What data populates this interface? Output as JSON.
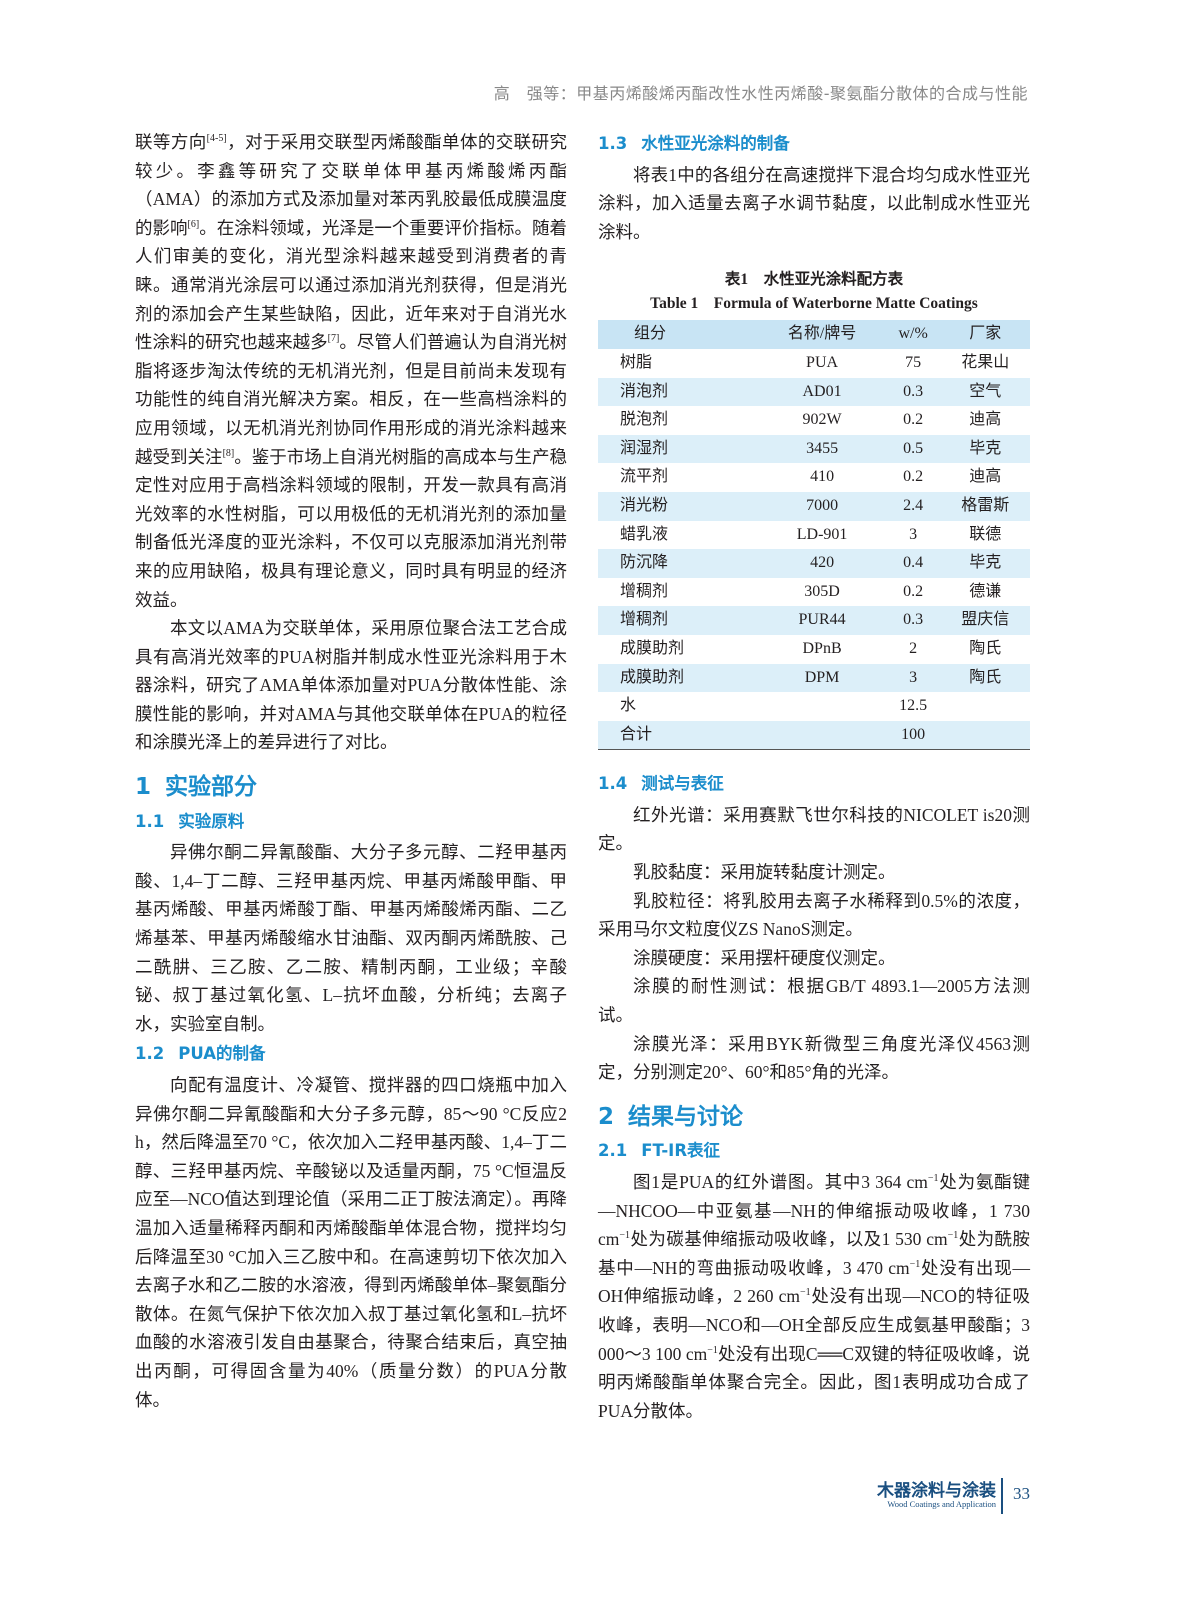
{
  "header": {
    "title": "高　强等：甲基丙烯酸烯丙酯改性水性丙烯酸-聚氨酯分散体的合成与性能"
  },
  "left": [
    {
      "type": "p",
      "indent": false,
      "runs": [
        "联等方向",
        {
          "sup": "[4-5]"
        },
        "，对于采用交联型丙烯酸酯单体的交联研究较少。李鑫等研究了交联单体甲基丙烯酸烯丙酯（AMA）的添加方式及添加量对苯丙乳胶最低成膜温度的影响",
        {
          "sup": "[6]"
        },
        "。在涂料领域，光泽是一个重要评价指标。随着人们审美的变化，消光型涂料越来越受到消费者的青睐。通常消光涂层可以通过添加消光剂获得，但是消光剂的添加会产生某些缺陷，因此，近年来对于自消光水性涂料的研究也越来越多",
        {
          "sup": "[7]"
        },
        "。尽管人们普遍认为自消光树脂将逐步淘汰传统的无机消光剂，但是目前尚未发现有功能性的纯自消光解决方案。相反，在一些高档涂料的应用领域，以无机消光剂协同作用形成的消光涂料越来越受到关注",
        {
          "sup": "[8]"
        },
        "。鉴于市场上自消光树脂的高成本与生产稳定性对应用于高档涂料领域的限制，开发一款具有高消光效率的水性树脂，可以用极低的无机消光剂的添加量制备低光泽度的亚光涂料，不仅可以克服添加消光剂带来的应用缺陷，极具有理论意义，同时具有明显的经济效益。"
      ]
    },
    {
      "type": "p",
      "indent": true,
      "runs": [
        "本文以AMA为交联单体，采用原位聚合法工艺合成具有高消光效率的PUA树脂并制成水性亚光涂料用于木器涂料，研究了AMA单体添加量对PUA分散体性能、涂膜性能的影响，并对AMA与其他交联单体在PUA的粒径和涂膜光泽上的差异进行了对比。"
      ]
    },
    {
      "type": "h1",
      "num": "1",
      "title": "实验部分"
    },
    {
      "type": "h2",
      "num": "1.1",
      "title": "实验原料"
    },
    {
      "type": "p",
      "indent": true,
      "runs": [
        "异佛尔酮二异氰酸酯、大分子多元醇、二羟甲基丙酸、1,4–丁二醇、三羟甲基丙烷、甲基丙烯酸甲酯、甲基丙烯酸、甲基丙烯酸丁酯、甲基丙烯酸烯丙酯、二乙烯基苯、甲基丙烯酸缩水甘油酯、双丙酮丙烯酰胺、己二酰肼、三乙胺、乙二胺、精制丙酮，工业级；辛酸铋、叔丁基过氧化氢、L–抗坏血酸，分析纯；去离子水，实验室自制。"
      ]
    },
    {
      "type": "h2",
      "num": "1.2",
      "title": "PUA的制备"
    },
    {
      "type": "p",
      "indent": true,
      "runs": [
        "向配有温度计、冷凝管、搅拌器的四口烧瓶中加入异佛尔酮二异氰酸酯和大分子多元醇，85～90 °C反应2 h，然后降温至70 °C，依次加入二羟甲基丙酸、1,4–丁二醇、三羟甲基丙烷、辛酸铋以及适量丙酮，75 °C恒温反应至—NCO值达到理论值（采用二正丁胺法滴定）。再降温加入适量稀释丙酮和丙烯酸酯单体混合物，搅拌均匀后降温至30 °C加入三乙胺中和。在高速剪切下依次加入去离子水和乙二胺的水溶液，得到丙烯酸单体–聚氨酯分散体。在氮气保护下依次加入叔丁基过氧化氢和L–抗坏血酸的水溶液引发自由基聚合，待聚合结束后，真空抽出丙酮，可得固含量为40%（质量分数）的PUA分散体。"
      ]
    }
  ],
  "right": [
    {
      "type": "h2",
      "num": "1.3",
      "title": "水性亚光涂料的制备"
    },
    {
      "type": "p",
      "indent": true,
      "runs": [
        "将表1中的各组分在高速搅拌下混合均匀成水性亚光涂料，加入适量去离子水调节黏度，以此制成水性亚光涂料。"
      ]
    },
    {
      "type": "table",
      "caption": "表1　水性亚光涂料配方表",
      "caption_en": "Table 1　Formula of Waterborne Matte Coatings",
      "columns": [
        "组分",
        "名称/牌号",
        "w/%",
        "厂家"
      ],
      "rows": [
        [
          "树脂",
          "PUA",
          "75",
          "花果山"
        ],
        [
          "消泡剂",
          "AD01",
          "0.3",
          "空气"
        ],
        [
          "脱泡剂",
          "902W",
          "0.2",
          "迪高"
        ],
        [
          "润湿剂",
          "3455",
          "0.5",
          "毕克"
        ],
        [
          "流平剂",
          "410",
          "0.2",
          "迪高"
        ],
        [
          "消光粉",
          "7000",
          "2.4",
          "格雷斯"
        ],
        [
          "蜡乳液",
          "LD-901",
          "3",
          "联德"
        ],
        [
          "防沉降",
          "420",
          "0.4",
          "毕克"
        ],
        [
          "增稠剂",
          "305D",
          "0.2",
          "德谦"
        ],
        [
          "增稠剂",
          "PUR44",
          "0.3",
          "盟庆信"
        ],
        [
          "成膜助剂",
          "DPnB",
          "2",
          "陶氏"
        ],
        [
          "成膜助剂",
          "DPM",
          "3",
          "陶氏"
        ],
        [
          "水",
          null,
          "12.5",
          null
        ],
        [
          "合计",
          null,
          "100",
          null
        ]
      ]
    },
    {
      "type": "h2",
      "num": "1.4",
      "title": "测试与表征"
    },
    {
      "type": "p",
      "indent": true,
      "runs": [
        "红外光谱：采用赛默飞世尔科技的NICOLET is20测定。"
      ]
    },
    {
      "type": "p",
      "indent": true,
      "runs": [
        "乳胶黏度：采用旋转黏度计测定。"
      ]
    },
    {
      "type": "p",
      "indent": true,
      "runs": [
        "乳胶粒径：将乳胶用去离子水稀释到0.5%的浓度，采用马尔文粒度仪ZS NanoS测定。"
      ]
    },
    {
      "type": "p",
      "indent": true,
      "runs": [
        "涂膜硬度：采用摆杆硬度仪测定。"
      ]
    },
    {
      "type": "p",
      "indent": true,
      "runs": [
        "涂膜的耐性测试：根据GB/T 4893.1—2005方法测试。"
      ]
    },
    {
      "type": "p",
      "indent": true,
      "runs": [
        "涂膜光泽：采用BYK新微型三角度光泽仪4563测定，分别测定20°、60°和85°角的光泽。"
      ]
    },
    {
      "type": "h1",
      "num": "2",
      "title": "结果与讨论"
    },
    {
      "type": "h2",
      "num": "2.1",
      "title": "FT-IR表征"
    },
    {
      "type": "p",
      "indent": true,
      "runs": [
        "图1是PUA的红外谱图。其中3 364 cm",
        {
          "sup": "−1"
        },
        "处为氨酯键—NHCOO—中亚氨基—NH的伸缩振动吸收峰，1 730 cm",
        {
          "sup": "−1"
        },
        "处为碳基伸缩振动吸收峰，以及1 530 cm",
        {
          "sup": "−1"
        },
        "处为酰胺基中—NH的弯曲振动吸收峰，3 470 cm",
        {
          "sup": "−1"
        },
        "处没有出现—OH伸缩振动峰，2 260 cm",
        {
          "sup": "−1"
        },
        "处没有出现—NCO的特征吸收峰，表明—NCO和—OH全部反应生成氨基甲酸酯；3 000～3 100 cm",
        {
          "sup": "−1"
        },
        "处没有出现C══C双键的特征吸收峰，说明丙烯酸酯单体聚合完全。因此，图1表明成功合成了PUA分散体。"
      ]
    }
  ],
  "footer": {
    "journal": "木器涂料与涂装",
    "journal_en": "Wood Coatings and Application",
    "page": "33"
  }
}
